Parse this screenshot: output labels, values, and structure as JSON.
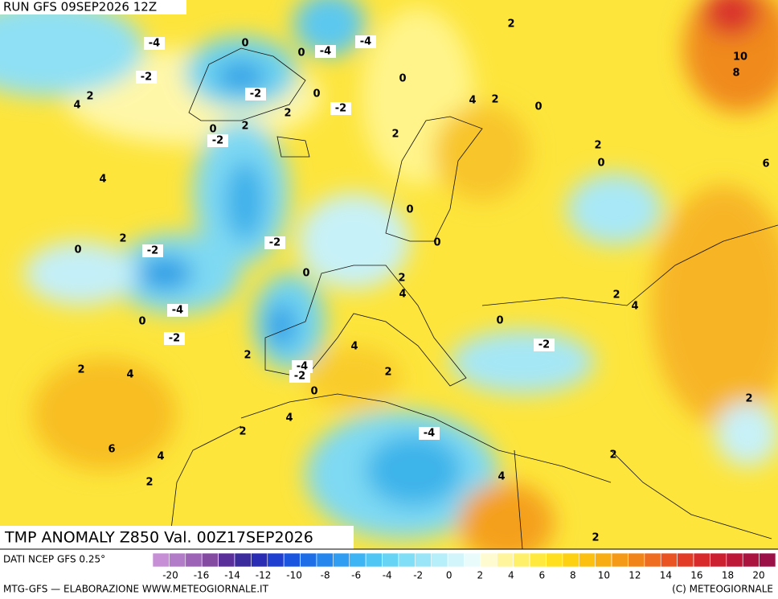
{
  "header": {
    "run": "RUN GFS 09SEP2026 12Z"
  },
  "title": "TMP ANOMALY Z850 Val. 00Z17SEP2026",
  "map": {
    "contour_labels": [
      -4,
      0,
      0,
      -4,
      -4,
      2,
      10,
      8,
      -2,
      2,
      4,
      0,
      -2,
      0,
      4,
      2,
      0,
      2,
      -2,
      0,
      2,
      -2,
      2,
      2,
      0,
      4,
      6,
      0,
      2,
      0,
      0,
      -2,
      -2,
      0,
      2,
      4,
      2,
      4,
      -4,
      0,
      0,
      -2,
      4,
      -2,
      2,
      -4,
      -2,
      2,
      4,
      2,
      0,
      2,
      4,
      2,
      -4,
      6,
      4,
      2,
      2,
      4,
      2
    ]
  },
  "legend": {
    "source": "DATI NCEP GFS 0.25°",
    "colors": [
      "#c68fd6",
      "#b27cc8",
      "#9c63b6",
      "#844aa2",
      "#5b2f9a",
      "#3b2b9c",
      "#2a2db4",
      "#1f3fd0",
      "#1a55e0",
      "#1e6ee8",
      "#2586ee",
      "#2f9ef2",
      "#3db4f4",
      "#4fc6f4",
      "#66d4f5",
      "#80def6",
      "#9ae6f8",
      "#b6eef9",
      "#d2f5fb",
      "#eafbfc",
      "#fffbd0",
      "#fff59c",
      "#fff06a",
      "#ffe93c",
      "#ffdf1e",
      "#fdd010",
      "#fbc010",
      "#f8ad12",
      "#f59a16",
      "#f2851a",
      "#ee6d1e",
      "#e95422",
      "#e23c26",
      "#d82a2a",
      "#cc1f30",
      "#bd1838",
      "#ac1440",
      "#9c1048"
    ],
    "tick_labels": [
      -20,
      -16,
      -14,
      -12,
      -10,
      -8,
      -6,
      -4,
      -2,
      0,
      2,
      4,
      6,
      8,
      10,
      12,
      14,
      16,
      18,
      20
    ]
  },
  "footer": {
    "left": "MTG-GFS — ELABORAZIONE WWW.METEOGIORNALE.IT",
    "right": "(C) METEOGIORNALE"
  }
}
